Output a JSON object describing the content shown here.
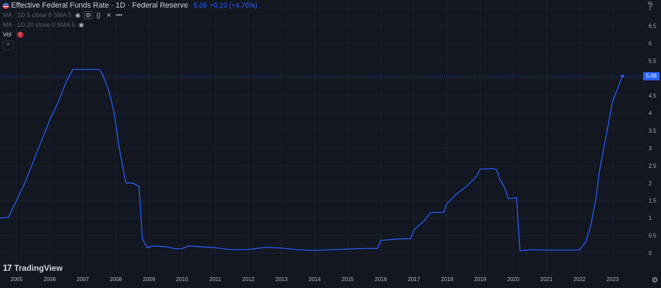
{
  "legend": {
    "title": "Effective Federal Funds Rate · 1D · Federal Reserve",
    "last_value": "5.06",
    "change": "+0.23 (+4.76%)",
    "ma1": "MA · 1D 5 close 0 SMA 5",
    "ma2": "MA · 1D 20 close 0 SMA 5",
    "vol_label": "Vol",
    "alert_glyph": "!",
    "collapse_glyph": "^"
  },
  "toolbar_glyphs": {
    "eye": "◉",
    "gear": "⚙",
    "braces": "{}",
    "close": "✕",
    "more": "•••"
  },
  "price_axis": {
    "unit": "%",
    "price_tag": "5.06"
  },
  "brand": {
    "mark": "17",
    "name": "TradingView"
  },
  "settings_glyph": "⚙",
  "colors": {
    "background": "#131722",
    "line": "#2962ff",
    "grid": "#1e222d",
    "text": "#b2b5be"
  },
  "chart_data": {
    "type": "line",
    "title": "Effective Federal Funds Rate",
    "ylabel": "%",
    "ylim": [
      0,
      7
    ],
    "yticks": [
      0,
      0.5,
      1,
      1.5,
      2,
      2.5,
      3,
      3.5,
      4,
      4.5,
      5,
      5.5,
      6,
      6.5,
      7
    ],
    "ytick_labels": [
      "0",
      "0.5",
      "1",
      "1.5",
      "2",
      "2.5",
      "3",
      "3.5",
      "4",
      "4.5",
      "5",
      "5.5",
      "6",
      "6.5",
      "7"
    ],
    "xlim": [
      2004.5,
      2023.9
    ],
    "xticks": [
      2005,
      2006,
      2007,
      2008,
      2009,
      2010,
      2011,
      2012,
      2013,
      2014,
      2015,
      2016,
      2017,
      2018,
      2019,
      2020,
      2021,
      2022,
      2023
    ],
    "xtick_labels": [
      "2005",
      "2006",
      "2007",
      "2008",
      "2009",
      "2010",
      "2011",
      "2012",
      "2013",
      "2014",
      "2015",
      "2016",
      "2017",
      "2018",
      "2019",
      "2020",
      "2021",
      "2022",
      "2023"
    ],
    "grid": true,
    "last_value": 5.06,
    "series": [
      {
        "points": [
          [
            2004.5,
            1.0
          ],
          [
            2004.75,
            1.02
          ],
          [
            2005.0,
            1.5
          ],
          [
            2005.25,
            2.0
          ],
          [
            2005.5,
            2.6
          ],
          [
            2005.75,
            3.2
          ],
          [
            2006.0,
            3.8
          ],
          [
            2006.25,
            4.3
          ],
          [
            2006.5,
            4.9
          ],
          [
            2006.7,
            5.25
          ],
          [
            2007.0,
            5.25
          ],
          [
            2007.5,
            5.25
          ],
          [
            2007.6,
            5.1
          ],
          [
            2007.8,
            4.6
          ],
          [
            2007.95,
            4.0
          ],
          [
            2008.1,
            3.0
          ],
          [
            2008.3,
            2.0
          ],
          [
            2008.5,
            2.0
          ],
          [
            2008.7,
            1.9
          ],
          [
            2008.8,
            0.4
          ],
          [
            2008.95,
            0.15
          ],
          [
            2009.1,
            0.2
          ],
          [
            2009.5,
            0.18
          ],
          [
            2009.8,
            0.12
          ],
          [
            2010.0,
            0.12
          ],
          [
            2010.2,
            0.2
          ],
          [
            2010.5,
            0.18
          ],
          [
            2011.0,
            0.15
          ],
          [
            2011.5,
            0.09
          ],
          [
            2012.0,
            0.1
          ],
          [
            2012.5,
            0.16
          ],
          [
            2013.0,
            0.14
          ],
          [
            2013.5,
            0.09
          ],
          [
            2014.0,
            0.07
          ],
          [
            2014.5,
            0.09
          ],
          [
            2015.0,
            0.11
          ],
          [
            2015.5,
            0.13
          ],
          [
            2015.9,
            0.13
          ],
          [
            2016.0,
            0.36
          ],
          [
            2016.5,
            0.4
          ],
          [
            2016.9,
            0.41
          ],
          [
            2017.0,
            0.66
          ],
          [
            2017.3,
            0.91
          ],
          [
            2017.5,
            1.15
          ],
          [
            2017.9,
            1.16
          ],
          [
            2018.0,
            1.42
          ],
          [
            2018.3,
            1.7
          ],
          [
            2018.6,
            1.91
          ],
          [
            2018.9,
            2.2
          ],
          [
            2019.0,
            2.4
          ],
          [
            2019.4,
            2.41
          ],
          [
            2019.5,
            2.38
          ],
          [
            2019.6,
            2.1
          ],
          [
            2019.75,
            1.85
          ],
          [
            2019.85,
            1.55
          ],
          [
            2020.1,
            1.58
          ],
          [
            2020.2,
            0.06
          ],
          [
            2020.5,
            0.09
          ],
          [
            2021.0,
            0.08
          ],
          [
            2021.5,
            0.08
          ],
          [
            2022.0,
            0.08
          ],
          [
            2022.2,
            0.33
          ],
          [
            2022.35,
            0.83
          ],
          [
            2022.5,
            1.58
          ],
          [
            2022.6,
            2.33
          ],
          [
            2022.75,
            3.08
          ],
          [
            2022.9,
            3.83
          ],
          [
            2023.0,
            4.33
          ],
          [
            2023.1,
            4.58
          ],
          [
            2023.2,
            4.83
          ],
          [
            2023.3,
            5.06
          ]
        ]
      }
    ]
  }
}
